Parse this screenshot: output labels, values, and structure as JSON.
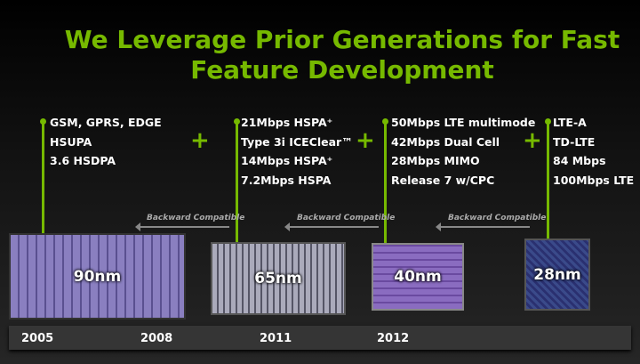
{
  "title_line1": "We Leverage Prior Generations for Fast",
  "title_line2": "Feature Development",
  "generations": [
    {
      "year": "2005",
      "node": "90nm",
      "features": [
        "GSM, GPRS, EDGE",
        "HSUPA",
        "3.6 HSDPA"
      ]
    },
    {
      "year": "2008",
      "node": "65nm",
      "features": [
        "21Mbps HSPA⁺",
        "Type 3i ICEClear™",
        "14Mbps HSPA⁺",
        "7.2Mbps HSPA"
      ]
    },
    {
      "year": "2011",
      "node": "40nm",
      "features": [
        "50Mbps LTE multimode",
        "42Mbps Dual Cell",
        "28Mbps MIMO",
        "Release 7 w/CPC"
      ]
    },
    {
      "year": "2012",
      "node": "28nm",
      "features": [
        "LTE-A",
        "TD-LTE",
        "84 Mbps",
        "100Mbps LTE"
      ]
    }
  ],
  "plus_symbol": "+",
  "backward_label": "Backward Compatible",
  "colors": {
    "accent": "#76b900",
    "background": "#111111"
  }
}
